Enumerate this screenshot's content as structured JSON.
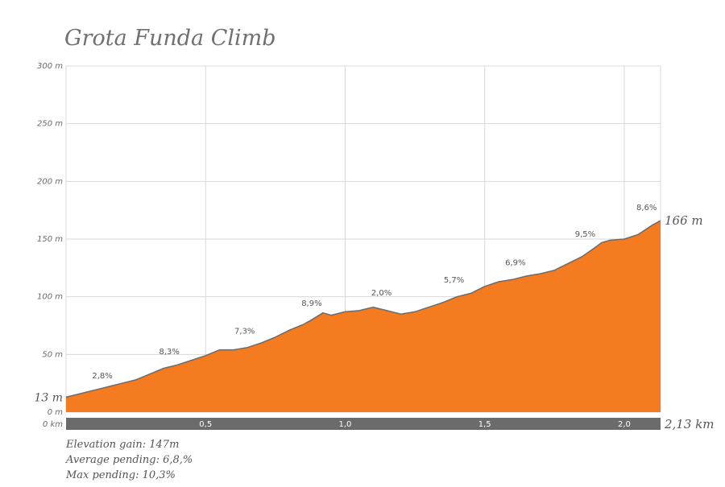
{
  "colors": {
    "fill": "#f47b20",
    "stroke": "#6b6b6b",
    "grid": "#d8d8d8",
    "axis_bar": "#6b6b6b"
  },
  "chart_data": {
    "type": "area",
    "title": "Grota Funda Climb",
    "xlabel": "",
    "ylabel": "",
    "xlim": [
      0,
      2.13
    ],
    "ylim": [
      0,
      300
    ],
    "grid": true,
    "x_ticks": [
      {
        "value": 0,
        "label": "0 km"
      },
      {
        "value": 0.5,
        "label": "0,5"
      },
      {
        "value": 1.0,
        "label": "1,0"
      },
      {
        "value": 1.5,
        "label": "1,5"
      },
      {
        "value": 2.0,
        "label": "2,0"
      },
      {
        "value": 2.13,
        "label": "2,13 km"
      }
    ],
    "y_ticks": [
      {
        "value": 0,
        "label": "0 m"
      },
      {
        "value": 50,
        "label": "50 m"
      },
      {
        "value": 100,
        "label": "100 m"
      },
      {
        "value": 150,
        "label": "150 m"
      },
      {
        "value": 200,
        "label": "200 m"
      },
      {
        "value": 250,
        "label": "250 m"
      },
      {
        "value": 300,
        "label": "300 m"
      }
    ],
    "x": [
      0,
      0.05,
      0.1,
      0.15,
      0.2,
      0.25,
      0.3,
      0.35,
      0.4,
      0.45,
      0.5,
      0.55,
      0.6,
      0.65,
      0.7,
      0.75,
      0.8,
      0.85,
      0.88,
      0.92,
      0.95,
      1.0,
      1.05,
      1.1,
      1.15,
      1.2,
      1.25,
      1.3,
      1.35,
      1.4,
      1.45,
      1.5,
      1.55,
      1.6,
      1.65,
      1.7,
      1.75,
      1.8,
      1.85,
      1.88,
      1.92,
      1.95,
      2.0,
      2.05,
      2.1,
      2.13
    ],
    "y": [
      13,
      16,
      19,
      22,
      25,
      28,
      33,
      38,
      41,
      45,
      49,
      54,
      54,
      56,
      60,
      65,
      71,
      76,
      80,
      86,
      84,
      87,
      88,
      91,
      88,
      85,
      87,
      91,
      95,
      100,
      103,
      109,
      113,
      115,
      118,
      120,
      123,
      129,
      135,
      140,
      147,
      149,
      150,
      154,
      162,
      166
    ],
    "grade_labels": [
      {
        "x": 0.13,
        "y": 25,
        "label": "2,8%"
      },
      {
        "x": 0.37,
        "y": 46,
        "label": "8,3%"
      },
      {
        "x": 0.64,
        "y": 64,
        "label": "7,3%"
      },
      {
        "x": 0.88,
        "y": 88,
        "label": "8,9%"
      },
      {
        "x": 1.13,
        "y": 97,
        "label": "2,0%"
      },
      {
        "x": 1.39,
        "y": 108,
        "label": "5,7%"
      },
      {
        "x": 1.61,
        "y": 123,
        "label": "6,9%"
      },
      {
        "x": 1.86,
        "y": 148,
        "label": "9,5%"
      },
      {
        "x": 2.08,
        "y": 171,
        "label": "8,6%"
      }
    ],
    "start_label": "13 m",
    "end_label": "166 m"
  },
  "stats": {
    "elevation_gain": "Elevation gain: 147m",
    "average_pending": "Average pending: 6,8,%",
    "max_pending": "Max pending: 10,3%"
  }
}
